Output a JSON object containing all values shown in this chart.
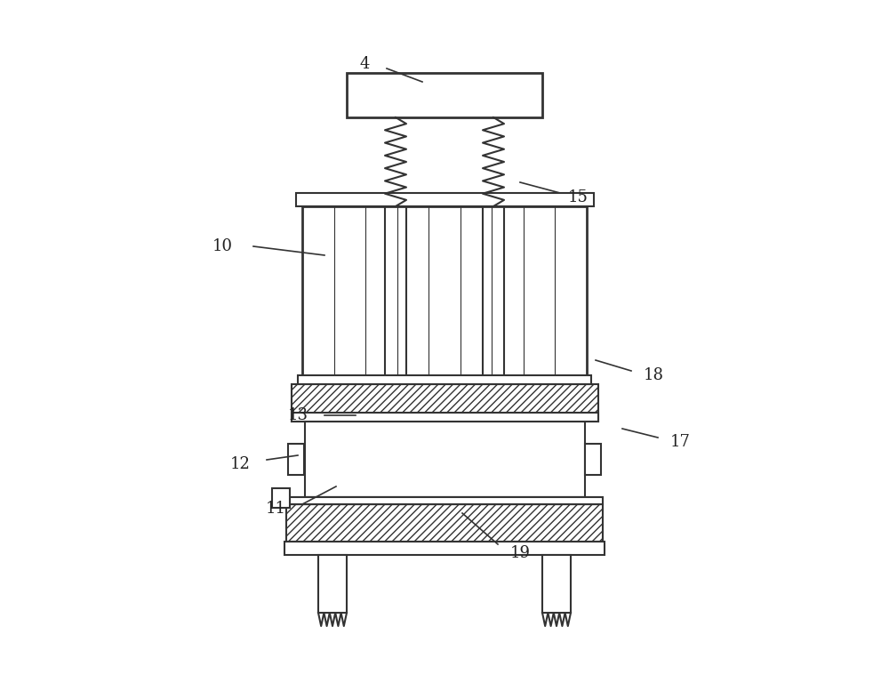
{
  "bg_color": "#ffffff",
  "line_color": "#333333",
  "lw": 1.5,
  "lw_thin": 0.8,
  "lw_thick": 2.0,
  "fig_w": 10.0,
  "fig_h": 7.77,
  "dpi": 100
}
